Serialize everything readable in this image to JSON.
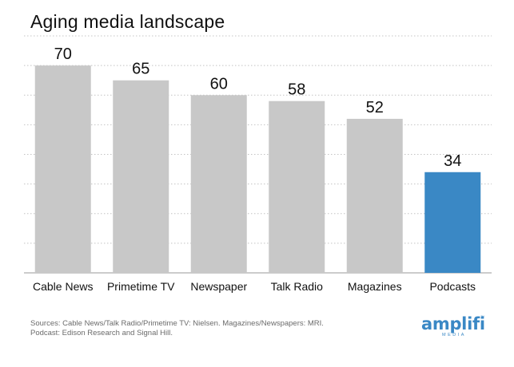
{
  "chart_data": {
    "type": "bar",
    "title": "Aging media landscape",
    "categories": [
      "Cable News",
      "Primetime TV",
      "Newspaper",
      "Talk Radio",
      "Magazines",
      "Podcasts"
    ],
    "values": [
      70,
      65,
      60,
      58,
      52,
      34
    ],
    "bar_colors": [
      "#c8c8c8",
      "#c8c8c8",
      "#c8c8c8",
      "#c8c8c8",
      "#c8c8c8",
      "#3a88c5"
    ],
    "ylim": [
      0,
      80
    ],
    "grid": "dotted-horizontal",
    "xlabel": "",
    "ylabel": ""
  },
  "footer": {
    "sources_line1": "Sources: Cable News/Talk Radio/Primetime TV: Nielsen. Magazines/Newspapers: MRI.",
    "sources_line2": "Podcast: Edison Research and Signal Hill."
  },
  "logo": {
    "name": "amplifi",
    "sub": "MEDIA",
    "tm": "™",
    "color": "#3a88c5"
  }
}
